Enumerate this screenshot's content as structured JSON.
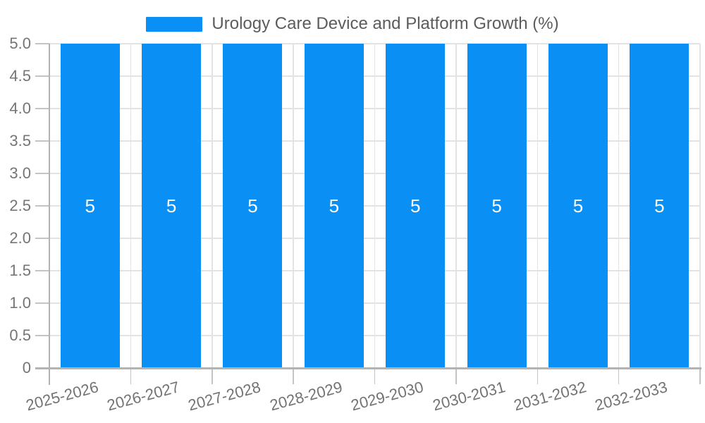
{
  "legend": {
    "label": "Urology Care Device and Platform Growth (%)"
  },
  "chart_data": {
    "type": "bar",
    "title": "Urology Care Device and Platform Growth (%)",
    "xlabel": "",
    "ylabel": "",
    "categories": [
      "2025-2026",
      "2026-2027",
      "2027-2028",
      "2028-2029",
      "2029-2030",
      "2030-2031",
      "2031-2032",
      "2032-2033"
    ],
    "series": [
      {
        "name": "Urology Care Device and Platform Growth (%)",
        "values": [
          5,
          5,
          5,
          5,
          5,
          5,
          5,
          5
        ]
      }
    ],
    "bar_labels": [
      "5",
      "5",
      "5",
      "5",
      "5",
      "5",
      "5",
      "5"
    ],
    "ylim": [
      0,
      5
    ],
    "ytick_labels": [
      "0",
      "0.5",
      "1.0",
      "1.5",
      "2.0",
      "2.5",
      "3.0",
      "3.5",
      "4.0",
      "4.5",
      "5.0"
    ],
    "ytick_values": [
      0,
      0.5,
      1,
      1.5,
      2,
      2.5,
      3,
      3.5,
      4,
      4.5,
      5
    ],
    "grid": true,
    "legend_position": "top-center",
    "colors": {
      "bar": "#0a8ff5",
      "grid": "#e3e3e3",
      "axis": "#b3b3b3",
      "tick": "#c4c4c4",
      "tick_text": "#757575",
      "x_label_text": "#737373",
      "legend_text": "#5c5c5c",
      "bar_label_text": "#ffffff",
      "background": "#ffffff"
    }
  }
}
